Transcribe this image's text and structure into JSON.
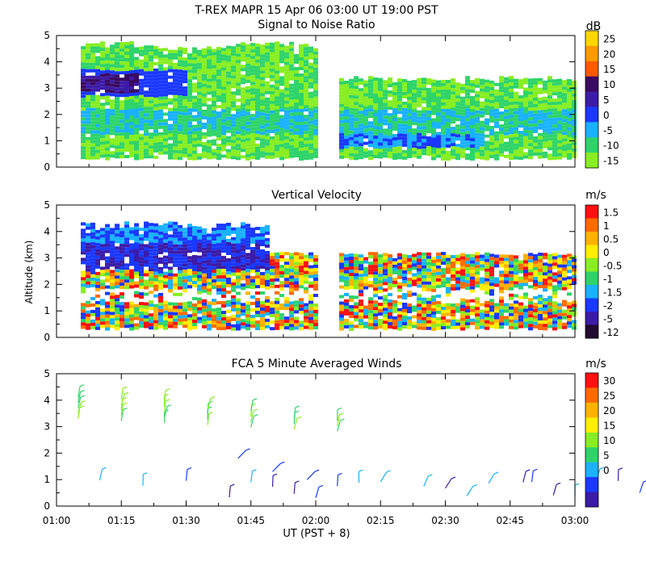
{
  "header": {
    "title": "T-REX  MAPR 15 Apr 06  03:00 UT  19:00  PST"
  },
  "axes": {
    "xlabel": "UT  (PST + 8)",
    "ylabel": "Altitude (km)",
    "x_ticks": [
      "01:00",
      "01:15",
      "01:30",
      "01:45",
      "02:00",
      "02:15",
      "02:30",
      "02:45",
      "03:00"
    ],
    "y_ticks": [
      "0",
      "1",
      "2",
      "3",
      "4",
      "5"
    ]
  },
  "chart_data": [
    {
      "type": "heatmap",
      "title": "Signal to Noise Ratio",
      "ylim": [
        0,
        5
      ],
      "xrange": [
        "01:00",
        "03:00"
      ],
      "colorbar": {
        "unit": "dB",
        "labels": [
          "25",
          "20",
          "15",
          "10",
          "5",
          "0",
          "-5",
          "-10",
          "-15"
        ],
        "colors": [
          "#ffd700",
          "#ff9a00",
          "#ff5a00",
          "#3a0a60",
          "#3c1ba8",
          "#1a38ff",
          "#19b2ff",
          "#2ed46a",
          "#88ee22"
        ]
      }
    },
    {
      "type": "heatmap",
      "title": "Vertical Velocity",
      "ylim": [
        0,
        5
      ],
      "xrange": [
        "01:00",
        "03:00"
      ],
      "colorbar": {
        "unit": "m/s",
        "labels": [
          "1.5",
          "1",
          "0.5",
          "0",
          "-0.5",
          "-1",
          "-1.5",
          "-2",
          "-5",
          "-12"
        ],
        "colors": [
          "#ff1010",
          "#ff6a00",
          "#ffb300",
          "#ffee00",
          "#88ee22",
          "#2ed46a",
          "#19b2ff",
          "#1a38ff",
          "#3c1ba8",
          "#220a30"
        ]
      }
    },
    {
      "type": "scatter",
      "title": "FCA 5 Minute Averaged Winds",
      "ylim": [
        0,
        5
      ],
      "xrange": [
        "01:00",
        "03:00"
      ],
      "colorbar": {
        "unit": "m/s",
        "labels": [
          "30",
          "25",
          "20",
          "15",
          "10",
          "5",
          "0"
        ],
        "colors": [
          "#ff1010",
          "#ff6a00",
          "#ffb300",
          "#ffee00",
          "#88ee22",
          "#2ed46a",
          "#19b2ff",
          "#1a38ff",
          "#3c1ba8"
        ]
      }
    }
  ]
}
